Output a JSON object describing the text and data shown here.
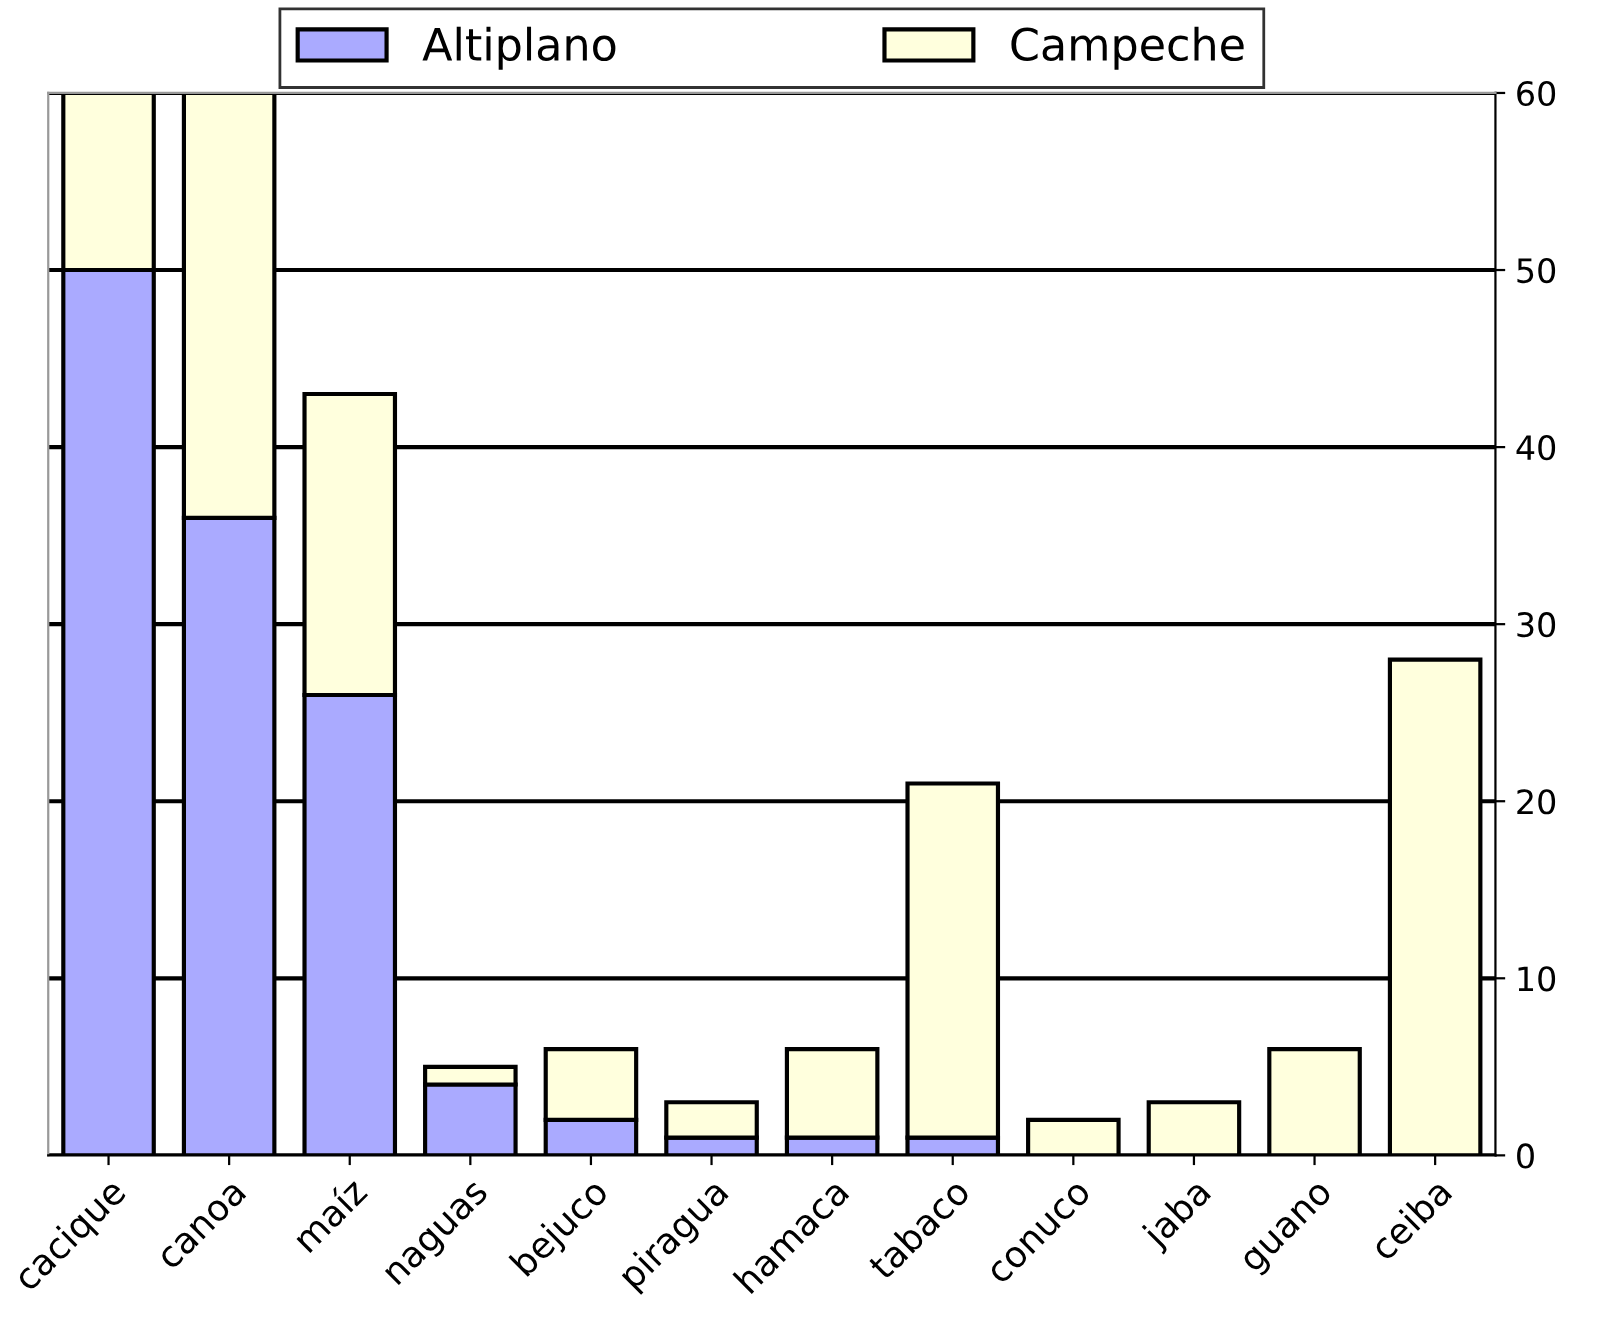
{
  "chart_data": {
    "type": "bar",
    "stacked": true,
    "categories": [
      "cacique",
      "canoa",
      "maíz",
      "naguas",
      "bejuco",
      "piragua",
      "hamaca",
      "tabaco",
      "conuco",
      "jaba",
      "guano",
      "ceiba"
    ],
    "series": [
      {
        "name": "Altiplano",
        "color": "#aaaaff",
        "values": [
          50,
          36,
          26,
          4,
          2,
          1,
          1,
          1,
          0,
          0,
          0,
          0
        ]
      },
      {
        "name": "Campeche",
        "color": "#ffffdd",
        "values": [
          10,
          24,
          17,
          1,
          4,
          2,
          5,
          20,
          2,
          3,
          6,
          28
        ]
      }
    ],
    "ylim": [
      0,
      60
    ],
    "yticks": [
      0,
      10,
      20,
      30,
      40,
      50,
      60
    ],
    "grid": "y",
    "legend": "top"
  }
}
